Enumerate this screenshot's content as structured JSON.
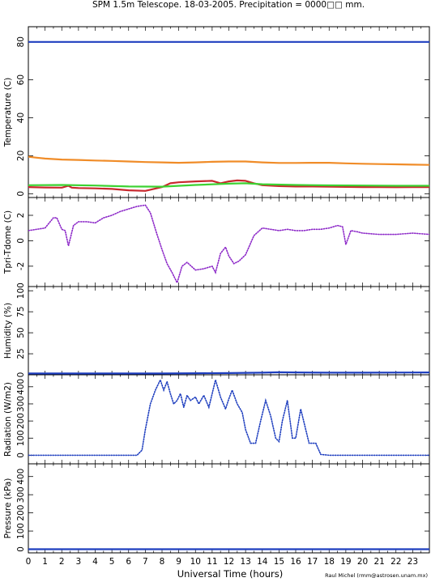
{
  "chart_data": {
    "title": "SPM 1.5m Telescope. 18-03-2005. Precipitation = 0000□□ mm.",
    "xlabel": "Universal Time (hours)",
    "credit": "Raul Michel (rmm@astrosen.unam.mx)",
    "xlim": [
      0,
      24
    ],
    "xticks": [
      "0",
      "1",
      "2",
      "3",
      "4",
      "5",
      "6",
      "7",
      "8",
      "9",
      "10",
      "11",
      "12",
      "13",
      "14",
      "15",
      "16",
      "17",
      "18",
      "19",
      "20",
      "21",
      "22",
      "23"
    ],
    "panels": [
      {
        "type": "line",
        "ylabel": "Temperature (C)",
        "ylim": [
          -2,
          88
        ],
        "yticks": [
          "0",
          "20",
          "40",
          "60",
          "80"
        ],
        "series": [
          {
            "color": "#1f3fbf",
            "x": [
              0,
              24
            ],
            "y": [
              80,
              80
            ]
          },
          {
            "color": "#f08c28",
            "x": [
              0,
              0.5,
              1,
              2,
              3,
              4,
              5,
              6,
              7,
              8,
              9,
              10,
              11,
              12,
              13,
              14,
              15,
              16,
              17,
              18,
              19,
              20,
              21,
              22,
              23,
              24
            ],
            "y": [
              19.5,
              19,
              18.5,
              18,
              17.8,
              17.5,
              17.3,
              17,
              16.7,
              16.5,
              16.3,
              16.5,
              16.8,
              17,
              17,
              16.5,
              16.2,
              16.2,
              16.3,
              16.3,
              16,
              15.8,
              15.6,
              15.5,
              15.3,
              15.2
            ]
          },
          {
            "color": "#c8282d",
            "x": [
              0,
              1,
              2,
              2.4,
              2.6,
              3,
              4,
              5,
              6,
              7,
              8,
              8.5,
              9,
              10,
              11,
              11.5,
              12,
              12.5,
              13,
              13.5,
              14,
              15,
              16,
              17,
              18,
              19,
              20,
              21,
              22,
              23,
              24
            ],
            "y": [
              3.5,
              3.3,
              3.2,
              4.2,
              3.2,
              3,
              2.8,
              2.5,
              1.8,
              1.5,
              3.5,
              5.5,
              6,
              6.5,
              6.8,
              5.5,
              6.5,
              7,
              6.8,
              5.5,
              4.5,
              4,
              3.8,
              3.8,
              3.7,
              3.6,
              3.5,
              3.5,
              3.4,
              3.5,
              3.5
            ]
          },
          {
            "color": "#3cd232",
            "x": [
              0,
              2,
              4,
              6,
              8,
              10,
              12,
              13,
              14,
              16,
              18,
              20,
              22,
              24
            ],
            "y": [
              4.5,
              4.6,
              4.3,
              3.8,
              3.7,
              4.6,
              5.3,
              5.5,
              5,
              4.6,
              4.4,
              4.3,
              4.2,
              4.2
            ]
          }
        ]
      },
      {
        "type": "scatter",
        "ylabel": "Tpri-Tdome (C)",
        "ylim": [
          -3.6,
          3.4
        ],
        "yticks": [
          "-2",
          "0",
          "2"
        ],
        "series": [
          {
            "color": "#8c28c8",
            "x": [
              0,
              0.5,
              1,
              1.5,
              1.7,
              2,
              2.2,
              2.4,
              2.7,
              3,
              3.5,
              4,
              4.5,
              5,
              5.5,
              6,
              6.5,
              7,
              7.3,
              7.7,
              8,
              8.3,
              8.6,
              8.9,
              9.2,
              9.5,
              10,
              10.5,
              11,
              11.2,
              11.5,
              11.8,
              12,
              12.3,
              12.6,
              13,
              13.5,
              14,
              14.5,
              15,
              15.5,
              16,
              16.5,
              17,
              17.5,
              18,
              18.5,
              18.8,
              19,
              19.3,
              19.7,
              20,
              21,
              22,
              23,
              24
            ],
            "y": [
              0.8,
              0.9,
              1.0,
              1.8,
              1.8,
              0.9,
              0.8,
              -0.4,
              1.2,
              1.5,
              1.5,
              1.4,
              1.8,
              2.0,
              2.3,
              2.5,
              2.7,
              2.8,
              2.2,
              0.5,
              -0.7,
              -1.8,
              -2.5,
              -3.3,
              -2.0,
              -1.7,
              -2.3,
              -2.2,
              -2.0,
              -2.5,
              -1.0,
              -0.5,
              -1.2,
              -1.8,
              -1.6,
              -1.1,
              0.4,
              1.0,
              0.9,
              0.8,
              0.9,
              0.8,
              0.8,
              0.9,
              0.9,
              1.0,
              1.2,
              1.1,
              -0.3,
              0.8,
              0.7,
              0.6,
              0.5,
              0.5,
              0.6,
              0.5
            ]
          }
        ]
      },
      {
        "type": "line",
        "ylabel": "Humidity (%)",
        "ylim": [
          0,
          105
        ],
        "yticks": [
          "0",
          "25",
          "50",
          "75",
          "100"
        ],
        "series": [
          {
            "color": "#1f3fbf",
            "x": [
              0,
              4,
              8,
              10,
              12,
              14,
              15,
              16,
              18,
              20,
              24
            ],
            "y": [
              1.5,
              1.5,
              1.5,
              1.8,
              2,
              2.5,
              3,
              2.8,
              2.5,
              2.5,
              2.8
            ]
          }
        ]
      },
      {
        "type": "scatter",
        "ylabel": "Radiation (W/m2)",
        "ylim": [
          -50,
          470
        ],
        "yticks": [
          "0",
          "100",
          "200",
          "300",
          "400"
        ],
        "series": [
          {
            "color": "#1f3fbf",
            "x": [
              0,
              6.5,
              6.8,
              7.0,
              7.3,
              7.6,
              7.9,
              8.1,
              8.3,
              8.5,
              8.7,
              8.9,
              9.1,
              9.3,
              9.5,
              9.7,
              10.0,
              10.2,
              10.5,
              10.8,
              11.0,
              11.2,
              11.5,
              11.8,
              12.0,
              12.2,
              12.5,
              12.8,
              13.0,
              13.3,
              13.6,
              13.9,
              14.2,
              14.5,
              14.8,
              15.0,
              15.2,
              15.5,
              15.8,
              16.0,
              16.3,
              16.8,
              17.2,
              17.5,
              18,
              20,
              22,
              24
            ],
            "y": [
              0,
              0,
              30,
              150,
              300,
              380,
              440,
              380,
              430,
              360,
              300,
              320,
              360,
              280,
              350,
              320,
              340,
              300,
              350,
              280,
              360,
              440,
              340,
              270,
              330,
              380,
              300,
              250,
              150,
              70,
              70,
              200,
              320,
              230,
              100,
              80,
              200,
              320,
              100,
              100,
              270,
              70,
              70,
              5,
              0,
              0,
              0,
              0
            ]
          }
        ]
      },
      {
        "type": "line",
        "ylabel": "Pressure (kPa)",
        "ylim": [
          -20,
          470
        ],
        "yticks": [
          "0",
          "100",
          "200",
          "300",
          "400"
        ],
        "series": [
          {
            "color": "#1f3fbf",
            "x": [
              0,
              24
            ],
            "y": [
              0,
              0
            ]
          }
        ]
      }
    ]
  }
}
